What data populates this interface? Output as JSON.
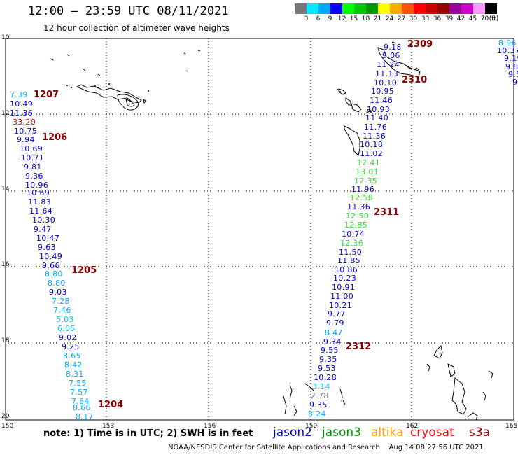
{
  "header": {
    "title": "12:00 – 23:59 UTC 08/11/2021",
    "subtitle": "12 hour collection of altimeter wave heights"
  },
  "legend": {
    "colors": [
      "#777777",
      "#00e8ff",
      "#00a8ff",
      "#0000ff",
      "#00ff00",
      "#00c800",
      "#009600",
      "#ffff00",
      "#ffaa00",
      "#ff5500",
      "#ff0000",
      "#c80000",
      "#960000",
      "#990099",
      "#cc00cc",
      "#ff99ff",
      "#000000"
    ],
    "labels": [
      "3",
      "6",
      "9",
      "12",
      "15",
      "18",
      "21",
      "24",
      "27",
      "30",
      "33",
      "36",
      "39",
      "42",
      "45",
      "70",
      "(ft)"
    ]
  },
  "map": {
    "lat_labels": [
      "10",
      "12",
      "14",
      "16",
      "18",
      "20"
    ],
    "lon_labels": [
      "150",
      "153",
      "156",
      "159",
      "162",
      "165"
    ]
  },
  "tracks": [
    {
      "id": "1207"
    },
    {
      "id": "1206"
    },
    {
      "id": "1205"
    },
    {
      "id": "1204"
    },
    {
      "id": "2309"
    },
    {
      "id": "2310"
    },
    {
      "id": "2311"
    },
    {
      "id": "2312"
    }
  ],
  "wave_heights": [
    {
      "text": "7.39",
      "color": "#00a8ff"
    },
    {
      "text": "10.49",
      "color": "#0000c8"
    },
    {
      "text": "11.36",
      "color": "#0000c8"
    },
    {
      "text": "33.20",
      "color": "#c80000"
    },
    {
      "text": "10.75",
      "color": "#0000c8"
    },
    {
      "text": "9.94",
      "color": "#0000c8"
    },
    {
      "text": "10.69",
      "color": "#0000c8"
    },
    {
      "text": "10.71",
      "color": "#0000c8"
    },
    {
      "text": "9.81",
      "color": "#0000c8"
    },
    {
      "text": "9.36",
      "color": "#0000c8"
    },
    {
      "text": "10.96",
      "color": "#0000c8"
    },
    {
      "text": "10.69",
      "color": "#0000c8"
    },
    {
      "text": "11.83",
      "color": "#0000c8"
    },
    {
      "text": "11.64",
      "color": "#0000c8"
    },
    {
      "text": "10.30",
      "color": "#0000c8"
    },
    {
      "text": "9.47",
      "color": "#0000c8"
    },
    {
      "text": "10.47",
      "color": "#0000c8"
    },
    {
      "text": "9.63",
      "color": "#0000c8"
    },
    {
      "text": "10.49",
      "color": "#0000c8"
    },
    {
      "text": "9.66",
      "color": "#0000c8"
    },
    {
      "text": "8.80",
      "color": "#00a8ff"
    },
    {
      "text": "8.80",
      "color": "#00a8ff"
    },
    {
      "text": "9.03",
      "color": "#0000c8"
    },
    {
      "text": "7.28",
      "color": "#00a8ff"
    },
    {
      "text": "7.46",
      "color": "#00a8ff"
    },
    {
      "text": "5.03",
      "color": "#00c8ff"
    },
    {
      "text": "6.05",
      "color": "#00c8ff"
    },
    {
      "text": "9.02",
      "color": "#0000c8"
    },
    {
      "text": "9.25",
      "color": "#0000c8"
    },
    {
      "text": "8.65",
      "color": "#00a8ff"
    },
    {
      "text": "8.42",
      "color": "#00a8ff"
    },
    {
      "text": "8.31",
      "color": "#00a8ff"
    },
    {
      "text": "7.55",
      "color": "#00a8ff"
    },
    {
      "text": "7.57",
      "color": "#00a8ff"
    },
    {
      "text": "7.64",
      "color": "#00a8ff"
    },
    {
      "text": "8.66",
      "color": "#00a8ff"
    },
    {
      "text": "8.17",
      "color": "#00a8ff"
    },
    {
      "text": "9.18",
      "color": "#0000c8"
    },
    {
      "text": "9.06",
      "color": "#0000c8"
    },
    {
      "text": "11.24",
      "color": "#0000c8"
    },
    {
      "text": "11.13",
      "color": "#0000c8"
    },
    {
      "text": "10.10",
      "color": "#0000c8"
    },
    {
      "text": "10.95",
      "color": "#0000c8"
    },
    {
      "text": "11.46",
      "color": "#0000c8"
    },
    {
      "text": "10.93",
      "color": "#0000c8"
    },
    {
      "text": "11.40",
      "color": "#0000c8"
    },
    {
      "text": "11.76",
      "color": "#0000c8"
    },
    {
      "text": "11.36",
      "color": "#0000c8"
    },
    {
      "text": "10.18",
      "color": "#0000c8"
    },
    {
      "text": "11.02",
      "color": "#0000c8"
    },
    {
      "text": "12.41",
      "color": "#33dd33"
    },
    {
      "text": "13.01",
      "color": "#33dd33"
    },
    {
      "text": "12.35",
      "color": "#33dd33"
    },
    {
      "text": "11.96",
      "color": "#0000c8"
    },
    {
      "text": "12.58",
      "color": "#33dd33"
    },
    {
      "text": "11.36",
      "color": "#0000c8"
    },
    {
      "text": "12.50",
      "color": "#33dd33"
    },
    {
      "text": "12.85",
      "color": "#33dd33"
    },
    {
      "text": "10.74",
      "color": "#0000c8"
    },
    {
      "text": "12.36",
      "color": "#33dd33"
    },
    {
      "text": "11.50",
      "color": "#0000c8"
    },
    {
      "text": "11.85",
      "color": "#0000c8"
    },
    {
      "text": "10.86",
      "color": "#0000c8"
    },
    {
      "text": "10.23",
      "color": "#0000c8"
    },
    {
      "text": "10.91",
      "color": "#0000c8"
    },
    {
      "text": "11.00",
      "color": "#0000c8"
    },
    {
      "text": "10.21",
      "color": "#0000c8"
    },
    {
      "text": "9.77",
      "color": "#0000c8"
    },
    {
      "text": "9.79",
      "color": "#0000c8"
    },
    {
      "text": "8.47",
      "color": "#00a8ff"
    },
    {
      "text": "9.34",
      "color": "#0000c8"
    },
    {
      "text": "9.55",
      "color": "#0000c8"
    },
    {
      "text": "9.35",
      "color": "#0000c8"
    },
    {
      "text": "9.53",
      "color": "#0000c8"
    },
    {
      "text": "10.28",
      "color": "#0000c8"
    },
    {
      "text": "3.14",
      "color": "#00c8ff"
    },
    {
      "text": "2.78",
      "color": "#777777"
    },
    {
      "text": "9.35",
      "color": "#0000c8"
    },
    {
      "text": "8.24",
      "color": "#00a8ff"
    },
    {
      "text": "8.96",
      "color": "#00a8ff"
    },
    {
      "text": "10.37",
      "color": "#0000c8"
    },
    {
      "text": "9.19",
      "color": "#0000c8"
    },
    {
      "text": "9.8",
      "color": "#0000c8"
    },
    {
      "text": "9.5",
      "color": "#0000c8"
    },
    {
      "text": "9",
      "color": "#0000c8"
    }
  ],
  "footer": {
    "note": "note:  1) Time is in UTC; 2) SWH is in feet",
    "satellites": [
      {
        "name": "jason2",
        "color": "#0000c8"
      },
      {
        "name": "jason3",
        "color": "#009600"
      },
      {
        "name": "altika",
        "color": "#ff9900"
      },
      {
        "name": "cryosat",
        "color": "#ff0000"
      },
      {
        "name": "s3a",
        "color": "#8b0000"
      }
    ],
    "credit": "NOAA/NESDIS Center for Satellite Applications and Research    Aug 14 08:27:56 UTC 2021"
  }
}
